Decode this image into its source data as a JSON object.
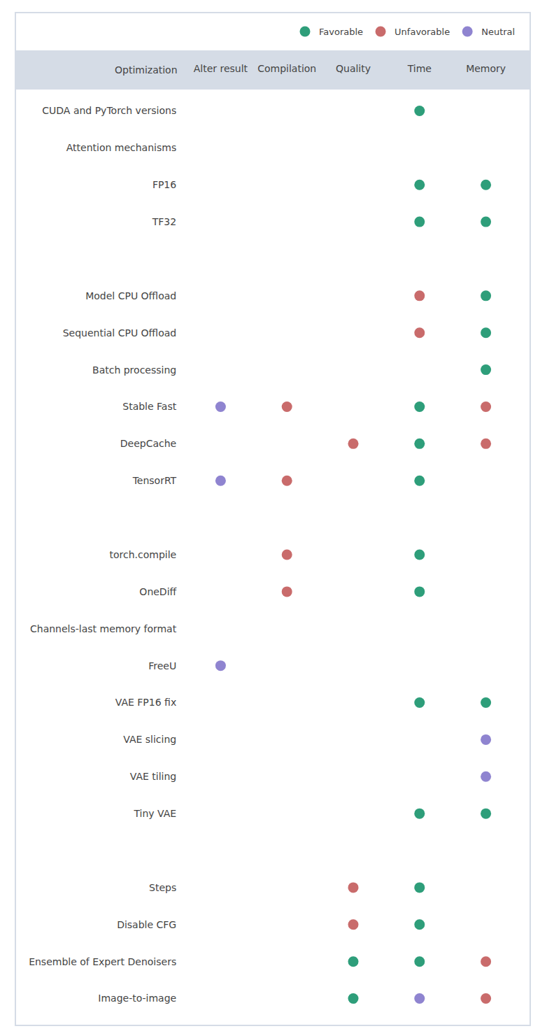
{
  "chart_data": {
    "type": "scatter",
    "row_header": "Optimization",
    "columns": [
      "Alter result",
      "Compilation",
      "Quality",
      "Time",
      "Memory"
    ],
    "categories": [
      "CUDA and PyTorch versions",
      "Attention mechanisms",
      "FP16",
      "TF32",
      null,
      "Model CPU Offload",
      "Sequential CPU Offload",
      "Batch processing",
      "Stable Fast",
      "DeepCache",
      "TensorRT",
      null,
      "torch.compile",
      "OneDiff",
      "Channels-last memory format",
      "FreeU",
      "VAE FP16 fix",
      "VAE slicing",
      "VAE tiling",
      "Tiny VAE",
      null,
      "Steps",
      "Disable CFG",
      "Ensemble of Expert Denoisers",
      "Image-to-image"
    ],
    "series": [
      {
        "name": "Favorable",
        "color": "#2e9e7a"
      },
      {
        "name": "Unfavorable",
        "color": "#c96b6b"
      },
      {
        "name": "Neutral",
        "color": "#8f84d0"
      }
    ],
    "cells": [
      [
        null,
        null,
        null,
        "Favorable",
        null
      ],
      [
        null,
        null,
        null,
        null,
        null
      ],
      [
        null,
        null,
        null,
        "Favorable",
        "Favorable"
      ],
      [
        null,
        null,
        null,
        "Favorable",
        "Favorable"
      ],
      [
        null,
        null,
        null,
        null,
        null
      ],
      [
        null,
        null,
        null,
        "Unfavorable",
        "Favorable"
      ],
      [
        null,
        null,
        null,
        "Unfavorable",
        "Favorable"
      ],
      [
        null,
        null,
        null,
        null,
        "Favorable"
      ],
      [
        "Neutral",
        "Unfavorable",
        null,
        "Favorable",
        "Unfavorable"
      ],
      [
        null,
        null,
        "Unfavorable",
        "Favorable",
        "Unfavorable"
      ],
      [
        "Neutral",
        "Unfavorable",
        null,
        "Favorable",
        null
      ],
      [
        null,
        null,
        null,
        null,
        null
      ],
      [
        null,
        "Unfavorable",
        null,
        "Favorable",
        null
      ],
      [
        null,
        "Unfavorable",
        null,
        "Favorable",
        null
      ],
      [
        null,
        null,
        null,
        null,
        null
      ],
      [
        "Neutral",
        null,
        null,
        null,
        null
      ],
      [
        null,
        null,
        null,
        "Favorable",
        "Favorable"
      ],
      [
        null,
        null,
        null,
        null,
        "Neutral"
      ],
      [
        null,
        null,
        null,
        null,
        "Neutral"
      ],
      [
        null,
        null,
        null,
        "Favorable",
        "Favorable"
      ],
      [
        null,
        null,
        null,
        null,
        null
      ],
      [
        null,
        null,
        "Unfavorable",
        "Favorable",
        null
      ],
      [
        null,
        null,
        "Unfavorable",
        "Favorable",
        null
      ],
      [
        null,
        null,
        "Favorable",
        "Favorable",
        "Unfavorable"
      ],
      [
        null,
        null,
        "Favorable",
        "Neutral",
        "Unfavorable"
      ]
    ],
    "legend": "top right",
    "grid": false
  }
}
